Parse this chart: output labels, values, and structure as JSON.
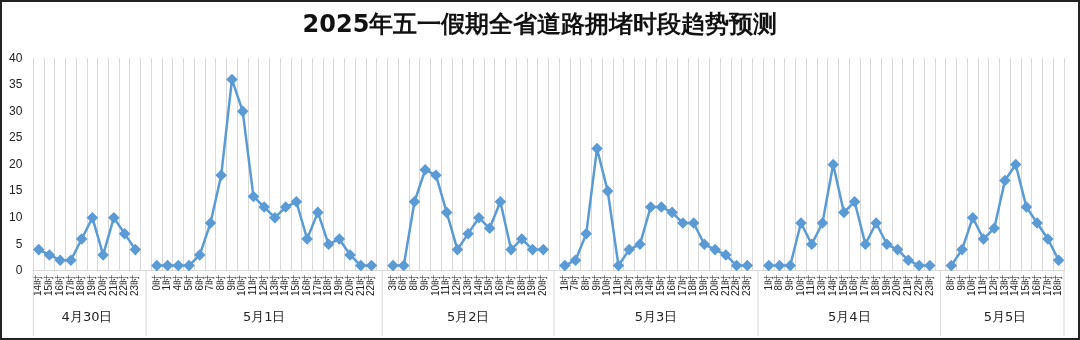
{
  "chart_data": {
    "type": "line",
    "title": "2025年五一假期全省道路拥堵时段趋势预测",
    "categories": [
      "14时",
      "15时",
      "16时",
      "17时",
      "18时",
      "19时",
      "20时",
      "21时",
      "22时",
      "23时",
      null,
      "0时",
      "1时",
      "4时",
      "5时",
      "6时",
      "7时",
      "8时",
      "9时",
      "10时",
      "11时",
      "12时",
      "13时",
      "14时",
      "15时",
      "16时",
      "17时",
      "18时",
      "19时",
      "20时",
      "21时",
      "22时",
      null,
      "3时",
      "6时",
      "8时",
      "9时",
      "10时",
      "11时",
      "12时",
      "13时",
      "14时",
      "15时",
      "16时",
      "17时",
      "18时",
      "19时",
      "20时",
      null,
      "1时",
      "7时",
      "8时",
      "9时",
      "10时",
      "11时",
      "12时",
      "13时",
      "14时",
      "15时",
      "16时",
      "17时",
      "18时",
      "19时",
      "20时",
      "21时",
      "22时",
      "23时",
      null,
      "1时",
      "8时",
      "9时",
      "10时",
      "11时",
      "13时",
      "14时",
      "15时",
      "16时",
      "17时",
      "18时",
      "19时",
      "20时",
      "21时",
      "22时",
      "23时",
      null,
      "8时",
      "9时",
      "10时",
      "11时",
      "12时",
      "13时",
      "14时",
      "15时",
      "16时",
      "17时",
      "18时"
    ],
    "series": [
      {
        "color": "#5b9bd5",
        "values": [
          4,
          3,
          2,
          2,
          6,
          10,
          3,
          10,
          7,
          4,
          null,
          1,
          1,
          1,
          1,
          3,
          9,
          18,
          36,
          30,
          14,
          12,
          10,
          12,
          13,
          6,
          11,
          5,
          6,
          3,
          1,
          1,
          null,
          1,
          1,
          13,
          19,
          18,
          11,
          4,
          7,
          10,
          8,
          13,
          4,
          6,
          4,
          4,
          null,
          1,
          2,
          7,
          23,
          15,
          1,
          4,
          5,
          12,
          12,
          11,
          9,
          9,
          5,
          4,
          3,
          1,
          1,
          null,
          1,
          1,
          1,
          9,
          5,
          9,
          20,
          11,
          13,
          5,
          9,
          5,
          4,
          2,
          1,
          1,
          null,
          1,
          4,
          10,
          6,
          8,
          17,
          20,
          12,
          9,
          6,
          2
        ]
      }
    ],
    "ylim": [
      0,
      40
    ],
    "yticks": [
      0,
      5,
      10,
      15,
      20,
      25,
      30,
      35,
      40
    ],
    "grid": "x",
    "legend": false,
    "marker": "diamond",
    "line_style": "solid",
    "annotations": [
      "4月30日",
      "5月1日",
      "5月2日",
      "5月3日",
      "5月4日",
      "5月5日"
    ]
  }
}
